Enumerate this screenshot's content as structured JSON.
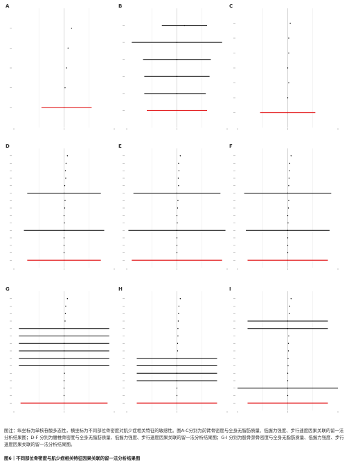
{
  "caption": {
    "note": "图注：纵坐标为单核苷酸多态性，横坐标为不同部位骨密度对肌少症相关特征的敏感性。图A-C分别为前臂骨密度与全身无脂肪质量、低握力强度、步行速度因果关联的留一法分析结果图；D-F 分别为腰椎骨密度与全身无脂肪质量、低握力强度、步行速度因果关联的留一法分析结果图；G-I 分别为股骨颈骨密度与全身无脂肪质量、低握力强度、步行速度因果关联的留一法分析结果图。",
    "title": "图6｜不同部位骨密度与肌少症相关特征因果关联的留一法分析结果图"
  },
  "colors": {
    "segment": "#000000",
    "overall": "#e31a1c",
    "grid": "#ebebeb",
    "zero": "#bbbbbb",
    "panel_label": "#333333"
  },
  "chart_data": [
    {
      "type": "forest",
      "panel": "A",
      "xlim": [
        -1,
        1
      ],
      "rows": [
        {
          "est": 0.15,
          "lo": 0.15,
          "hi": 0.15
        },
        {
          "est": 0.08,
          "lo": 0.08,
          "hi": 0.08
        },
        {
          "est": 0.05,
          "lo": 0.05,
          "hi": 0.05
        },
        {
          "est": 0.02,
          "lo": 0.02,
          "hi": 0.02
        },
        {
          "est": 0.0,
          "lo": -0.45,
          "hi": 0.55,
          "overall": true
        }
      ]
    },
    {
      "type": "forest",
      "panel": "B",
      "xlim": [
        -2,
        2
      ],
      "rows": [
        {
          "est": 0.3,
          "lo": -0.6,
          "hi": 1.2
        },
        {
          "est": 0.0,
          "lo": -1.8,
          "hi": 1.8
        },
        {
          "est": 0.0,
          "lo": -1.35,
          "hi": 1.35
        },
        {
          "est": 0.0,
          "lo": -1.3,
          "hi": 1.3
        },
        {
          "est": 0.0,
          "lo": -1.3,
          "hi": 1.15
        },
        {
          "est": 0.0,
          "lo": -1.2,
          "hi": 1.2,
          "overall": true
        }
      ]
    },
    {
      "type": "forest",
      "panel": "C",
      "xlim": [
        -1,
        1
      ],
      "rows": [
        {
          "est": 0.05,
          "lo": 0.05,
          "hi": 0.05
        },
        {
          "est": 0.02,
          "lo": 0.02,
          "hi": 0.02
        },
        {
          "est": 0.02,
          "lo": 0.02,
          "hi": 0.02
        },
        {
          "est": 0.0,
          "lo": 0.0,
          "hi": 0.0
        },
        {
          "est": 0.02,
          "lo": 0.02,
          "hi": 0.02
        },
        {
          "est": 0.0,
          "lo": 0.0,
          "hi": 0.0
        },
        {
          "est": 0.0,
          "lo": -0.55,
          "hi": 0.55,
          "overall": true
        }
      ]
    },
    {
      "type": "forest",
      "panel": "D",
      "xlim": [
        -1.5,
        1.5
      ],
      "rows": [
        {
          "est": 0.1,
          "lo": 0.1,
          "hi": 0.1
        },
        {
          "est": 0.06,
          "lo": 0.06,
          "hi": 0.06
        },
        {
          "est": 0.04,
          "lo": 0.04,
          "hi": 0.04
        },
        {
          "est": 0.05,
          "lo": 0.05,
          "hi": 0.05
        },
        {
          "est": 0.02,
          "lo": 0.02,
          "hi": 0.02
        },
        {
          "est": 0.0,
          "lo": -1.1,
          "hi": 1.1
        },
        {
          "est": 0.03,
          "lo": 0.03,
          "hi": 0.03
        },
        {
          "est": 0.02,
          "lo": 0.02,
          "hi": 0.02
        },
        {
          "est": 0.0,
          "lo": 0.0,
          "hi": 0.0
        },
        {
          "est": 0.01,
          "lo": 0.01,
          "hi": 0.01
        },
        {
          "est": 0.0,
          "lo": -1.2,
          "hi": 1.2
        },
        {
          "est": 0.0,
          "lo": 0.0,
          "hi": 0.0
        },
        {
          "est": 0.0,
          "lo": 0.0,
          "hi": 0.0
        },
        {
          "est": 0.0,
          "lo": 0.0,
          "hi": 0.0
        },
        {
          "est": 0.0,
          "lo": -1.1,
          "hi": 1.1,
          "overall": true
        }
      ]
    },
    {
      "type": "forest",
      "panel": "E",
      "xlim": [
        -1.5,
        1.5
      ],
      "rows": [
        {
          "est": 0.1,
          "lo": 0.1,
          "hi": 0.1
        },
        {
          "est": 0.05,
          "lo": 0.05,
          "hi": 0.05
        },
        {
          "est": 0.06,
          "lo": 0.06,
          "hi": 0.06
        },
        {
          "est": 0.04,
          "lo": 0.04,
          "hi": 0.04
        },
        {
          "est": 0.05,
          "lo": 0.05,
          "hi": 0.05
        },
        {
          "est": 0.0,
          "lo": -1.3,
          "hi": 1.3
        },
        {
          "est": 0.03,
          "lo": 0.03,
          "hi": 0.03
        },
        {
          "est": 0.02,
          "lo": 0.02,
          "hi": 0.02
        },
        {
          "est": 0.0,
          "lo": 0.0,
          "hi": 0.0
        },
        {
          "est": 0.01,
          "lo": 0.01,
          "hi": 0.01
        },
        {
          "est": 0.0,
          "lo": -1.45,
          "hi": 1.45
        },
        {
          "est": 0.0,
          "lo": 0.0,
          "hi": 0.0
        },
        {
          "est": 0.0,
          "lo": 0.0,
          "hi": 0.0
        },
        {
          "est": 0.0,
          "lo": 0.0,
          "hi": 0.0
        },
        {
          "est": 0.0,
          "lo": -1.35,
          "hi": 1.35,
          "overall": true
        }
      ]
    },
    {
      "type": "forest",
      "panel": "F",
      "xlim": [
        -1.5,
        1.5
      ],
      "rows": [
        {
          "est": 0.1,
          "lo": 0.1,
          "hi": 0.1
        },
        {
          "est": 0.06,
          "lo": 0.06,
          "hi": 0.06
        },
        {
          "est": 0.05,
          "lo": 0.05,
          "hi": 0.05
        },
        {
          "est": 0.04,
          "lo": 0.04,
          "hi": 0.04
        },
        {
          "est": 0.03,
          "lo": 0.03,
          "hi": 0.03
        },
        {
          "est": 0.0,
          "lo": -1.3,
          "hi": 1.3
        },
        {
          "est": 0.03,
          "lo": 0.03,
          "hi": 0.03
        },
        {
          "est": 0.02,
          "lo": 0.02,
          "hi": 0.02
        },
        {
          "est": 0.0,
          "lo": 0.0,
          "hi": 0.0
        },
        {
          "est": 0.01,
          "lo": 0.01,
          "hi": 0.01
        },
        {
          "est": 0.0,
          "lo": -1.25,
          "hi": 1.25
        },
        {
          "est": 0.0,
          "lo": 0.0,
          "hi": 0.0
        },
        {
          "est": 0.0,
          "lo": 0.0,
          "hi": 0.0
        },
        {
          "est": 0.0,
          "lo": 0.0,
          "hi": 0.0
        },
        {
          "est": 0.0,
          "lo": -1.2,
          "hi": 1.2,
          "overall": true
        }
      ]
    },
    {
      "type": "forest",
      "panel": "G",
      "xlim": [
        -1.5,
        1.5
      ],
      "rows": [
        {
          "est": 0.1,
          "lo": 0.1,
          "hi": 0.1
        },
        {
          "est": 0.05,
          "lo": 0.05,
          "hi": 0.05
        },
        {
          "est": 0.04,
          "lo": 0.04,
          "hi": 0.04
        },
        {
          "est": 0.03,
          "lo": 0.03,
          "hi": 0.03
        },
        {
          "est": 0.0,
          "lo": -1.35,
          "hi": 1.35
        },
        {
          "est": 0.0,
          "lo": -1.35,
          "hi": 1.35
        },
        {
          "est": 0.0,
          "lo": -1.35,
          "hi": 1.35
        },
        {
          "est": 0.0,
          "lo": -1.35,
          "hi": 1.35
        },
        {
          "est": 0.0,
          "lo": -1.35,
          "hi": 1.35
        },
        {
          "est": 0.0,
          "lo": -1.35,
          "hi": 1.35
        },
        {
          "est": 0.01,
          "lo": 0.01,
          "hi": 0.01
        },
        {
          "est": 0.0,
          "lo": 0.0,
          "hi": 0.0
        },
        {
          "est": 0.0,
          "lo": 0.0,
          "hi": 0.0
        },
        {
          "est": 0.0,
          "lo": 0.0,
          "hi": 0.0
        },
        {
          "est": 0.0,
          "lo": -1.3,
          "hi": 1.3,
          "overall": true
        }
      ]
    },
    {
      "type": "forest",
      "panel": "H",
      "xlim": [
        -1.5,
        1.5
      ],
      "rows": [
        {
          "est": 0.1,
          "lo": 0.1,
          "hi": 0.1
        },
        {
          "est": 0.06,
          "lo": 0.06,
          "hi": 0.06
        },
        {
          "est": 0.05,
          "lo": 0.05,
          "hi": 0.05
        },
        {
          "est": 0.04,
          "lo": 0.04,
          "hi": 0.04
        },
        {
          "est": 0.03,
          "lo": 0.03,
          "hi": 0.03
        },
        {
          "est": 0.03,
          "lo": 0.03,
          "hi": 0.03
        },
        {
          "est": 0.02,
          "lo": 0.02,
          "hi": 0.02
        },
        {
          "est": 0.02,
          "lo": 0.02,
          "hi": 0.02
        },
        {
          "est": 0.0,
          "lo": -1.2,
          "hi": 1.2
        },
        {
          "est": 0.0,
          "lo": -1.2,
          "hi": 1.2
        },
        {
          "est": 0.0,
          "lo": -1.2,
          "hi": 1.2
        },
        {
          "est": 0.0,
          "lo": -1.2,
          "hi": 1.2
        },
        {
          "est": 0.0,
          "lo": 0.0,
          "hi": 0.0
        },
        {
          "est": 0.0,
          "lo": 0.0,
          "hi": 0.0
        },
        {
          "est": 0.0,
          "lo": -1.2,
          "hi": 1.2,
          "overall": true
        }
      ]
    },
    {
      "type": "forest",
      "panel": "I",
      "xlim": [
        -1.5,
        1.5
      ],
      "rows": [
        {
          "est": 0.1,
          "lo": 0.1,
          "hi": 0.1
        },
        {
          "est": 0.06,
          "lo": 0.06,
          "hi": 0.06
        },
        {
          "est": 0.05,
          "lo": 0.05,
          "hi": 0.05
        },
        {
          "est": 0.0,
          "lo": -1.2,
          "hi": 1.2
        },
        {
          "est": 0.0,
          "lo": -1.2,
          "hi": 1.2
        },
        {
          "est": 0.03,
          "lo": 0.03,
          "hi": 0.03
        },
        {
          "est": 0.02,
          "lo": 0.02,
          "hi": 0.02
        },
        {
          "est": 0.02,
          "lo": 0.02,
          "hi": 0.02
        },
        {
          "est": 0.01,
          "lo": 0.01,
          "hi": 0.01
        },
        {
          "est": 0.01,
          "lo": 0.01,
          "hi": 0.01
        },
        {
          "est": 0.0,
          "lo": 0.0,
          "hi": 0.0
        },
        {
          "est": 0.0,
          "lo": 0.0,
          "hi": 0.0
        },
        {
          "est": 0.0,
          "lo": -1.5,
          "hi": 1.5
        },
        {
          "est": 0.0,
          "lo": 0.0,
          "hi": 0.0
        },
        {
          "est": 0.0,
          "lo": -1.2,
          "hi": 1.2,
          "overall": true
        }
      ]
    }
  ]
}
